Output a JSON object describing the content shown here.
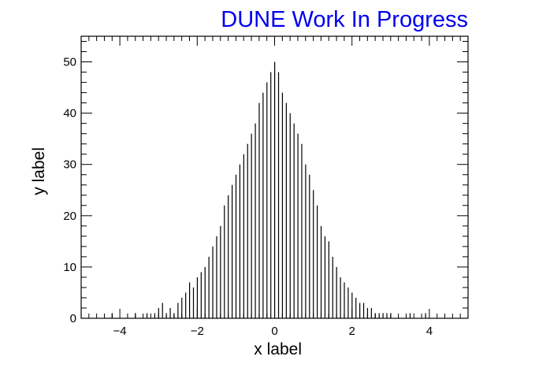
{
  "chart_data": {
    "type": "histogram",
    "title": "DUNE Work In Progress",
    "title_color": "#0000ee",
    "xlabel": "x label",
    "ylabel": "y label",
    "xlim": [
      -5,
      5
    ],
    "ylim": [
      0,
      55
    ],
    "x_ticks": [
      -4,
      -2,
      0,
      2,
      4
    ],
    "x_tick_labels": [
      "−4",
      "−2",
      "0",
      "2",
      "4"
    ],
    "y_ticks": [
      0,
      10,
      20,
      30,
      40,
      50
    ],
    "y_tick_labels": [
      "0",
      "10",
      "20",
      "30",
      "40",
      "50"
    ],
    "bin_width": 0.02,
    "line_color": "#000000",
    "grid": false,
    "series": [
      {
        "bin_centers": [
          -4.2,
          -3.6,
          -3.3,
          -3.1,
          -3.0,
          -2.9,
          -2.8,
          -2.7,
          -2.6,
          -2.5,
          -2.4,
          -2.3,
          -2.2,
          -2.1,
          -2.0,
          -1.9,
          -1.8,
          -1.7,
          -1.6,
          -1.5,
          -1.4,
          -1.3,
          -1.2,
          -1.1,
          -1.0,
          -0.9,
          -0.8,
          -0.7,
          -0.6,
          -0.5,
          -0.4,
          -0.3,
          -0.2,
          -0.1,
          0.0,
          0.1,
          0.2,
          0.3,
          0.4,
          0.5,
          0.6,
          0.7,
          0.8,
          0.9,
          1.0,
          1.1,
          1.2,
          1.3,
          1.4,
          1.5,
          1.6,
          1.7,
          1.8,
          1.9,
          2.0,
          2.1,
          2.2,
          2.3,
          2.4,
          2.5,
          2.6,
          2.7,
          2.8,
          2.9,
          3.0,
          3.5,
          3.9
        ],
        "counts": [
          1,
          1,
          1,
          1,
          2,
          3,
          1,
          2,
          1,
          3,
          4,
          5,
          7,
          6,
          8,
          9,
          10,
          12,
          14,
          16,
          18,
          22,
          24,
          26,
          28,
          30,
          32,
          34,
          36,
          38,
          42,
          44,
          46,
          48,
          50,
          48,
          44,
          42,
          40,
          38,
          36,
          34,
          30,
          28,
          25,
          22,
          18,
          16,
          15,
          12,
          10,
          8,
          7,
          6,
          5,
          4,
          3,
          3,
          2,
          2,
          1,
          1,
          1,
          1,
          1,
          1,
          1
        ]
      }
    ]
  }
}
